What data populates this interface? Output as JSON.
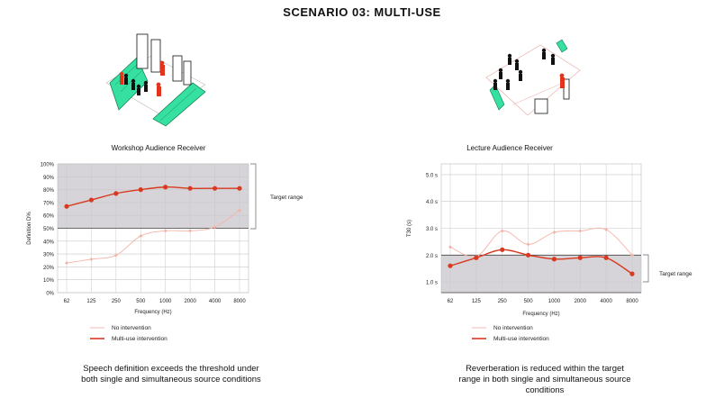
{
  "page": {
    "title": "SCENARIO 03: MULTI-USE"
  },
  "colors": {
    "no_intervention": "#f3b4a8",
    "multi_use": "#d9391e",
    "target_band": "#d6d4d9",
    "grid": "#c8c8c8"
  },
  "chart_data": [
    {
      "type": "line",
      "title": "Workshop Audience Receiver",
      "xlabel": "Frequency (Hz)",
      "ylabel": "Definition D%",
      "categories": [
        "62",
        "125",
        "250",
        "500",
        "1000",
        "2000",
        "4000",
        "8000"
      ],
      "yticks": [
        "0%",
        "10%",
        "20%",
        "30%",
        "40%",
        "50%",
        "60%",
        "70%",
        "80%",
        "90%",
        "100%"
      ],
      "ylim": [
        0,
        100
      ],
      "target_range": [
        50,
        100
      ],
      "target_label": "Target range",
      "grid": true,
      "legend_position": "bottom",
      "series": [
        {
          "name": "No intervention",
          "color": "#f3b4a8",
          "values": [
            23,
            26,
            29,
            44,
            48,
            48,
            51,
            64
          ]
        },
        {
          "name": "Multi-use intervention",
          "color": "#d9391e",
          "values": [
            67,
            72,
            77,
            80,
            82,
            81,
            81,
            81
          ]
        }
      ],
      "caption": [
        "Speech definition exceeds the threshold under",
        "both single and simultaneous source conditions"
      ]
    },
    {
      "type": "line",
      "title": "Lecture Audience Receiver",
      "xlabel": "Frequency (Hz)",
      "ylabel": "T30 (s)",
      "categories": [
        "62",
        "125",
        "250",
        "500",
        "1000",
        "2000",
        "4000",
        "8000"
      ],
      "yticks": [
        "1.0 s",
        "2.0 s",
        "3.0 s",
        "4.0 s",
        "5.0 s"
      ],
      "ylim": [
        0.6,
        5.4
      ],
      "target_range": [
        0.6,
        2.0
      ],
      "target_label": "Target range",
      "grid": true,
      "legend_position": "bottom",
      "series": [
        {
          "name": "No intervention",
          "color": "#f3b4a8",
          "values": [
            2.3,
            1.95,
            2.9,
            2.4,
            2.85,
            2.9,
            2.95,
            2.0
          ]
        },
        {
          "name": "Multi-use intervention",
          "color": "#d9391e",
          "values": [
            1.6,
            1.9,
            2.2,
            2.0,
            1.85,
            1.9,
            1.9,
            1.3
          ]
        }
      ],
      "caption": [
        "Reverberation is reduced within the target",
        "range in both single and simultaneous source",
        "conditions"
      ]
    }
  ]
}
